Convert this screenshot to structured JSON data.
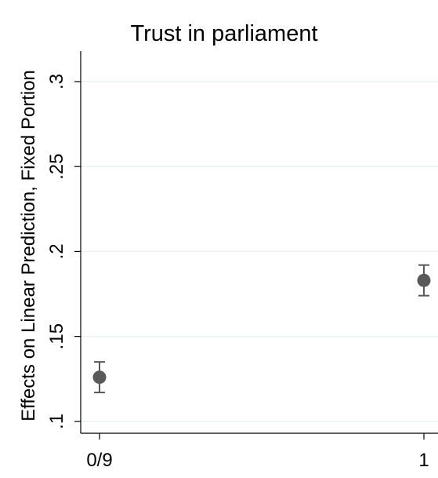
{
  "chart_data": {
    "type": "scatter",
    "title": "Trust in parliament",
    "ylabel": "Effects on Linear Prediction, Fixed Portion",
    "xlabel": "",
    "x_tick_labels": [
      "0/9",
      "1"
    ],
    "y_ticks": [
      0.1,
      0.15,
      0.2,
      0.25,
      0.3
    ],
    "y_tick_labels": [
      ".1",
      ".15",
      ".2",
      ".25",
      ".3"
    ],
    "ylim": [
      0.093,
      0.318
    ],
    "grid": true,
    "points": [
      {
        "x": "0/9",
        "y": 0.126,
        "ci_low": 0.117,
        "ci_high": 0.135
      },
      {
        "x": "1",
        "y": 0.183,
        "ci_low": 0.174,
        "ci_high": 0.192
      }
    ],
    "colors": {
      "marker": "#595959",
      "gridline": "#eaf2f3",
      "axis": "#000000"
    }
  }
}
